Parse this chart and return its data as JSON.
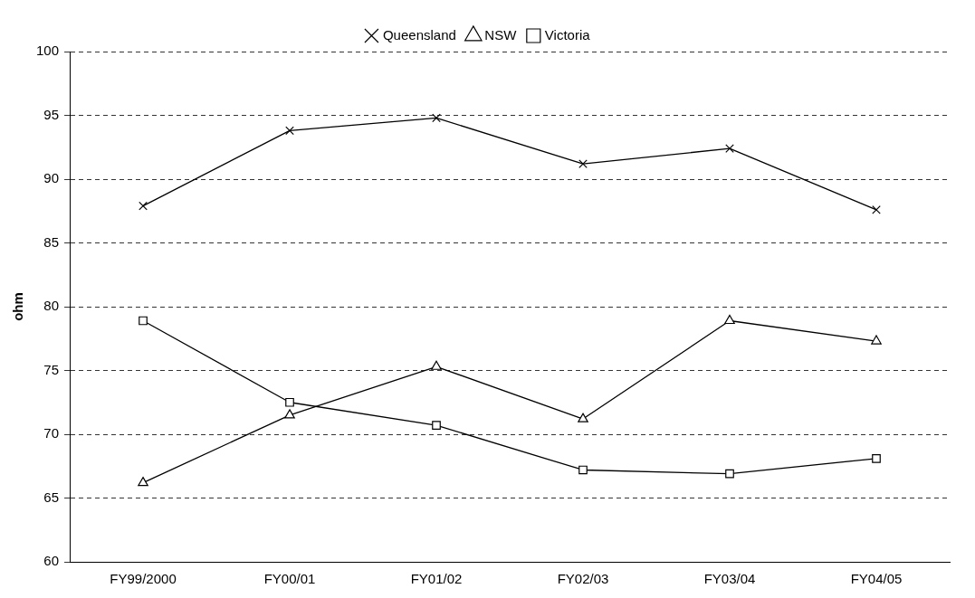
{
  "chart_data": {
    "type": "line",
    "ylabel": "ohm",
    "categories": [
      "FY99/2000",
      "FY00/01",
      "FY01/02",
      "FY02/03",
      "FY03/04",
      "FY04/05"
    ],
    "series": [
      {
        "name": "Queensland",
        "color": "#000000",
        "marker": "cross",
        "values": [
          87.9,
          93.8,
          94.8,
          91.2,
          92.4,
          87.6
        ]
      },
      {
        "name": "NSW",
        "color": "#000000",
        "marker": "triangle",
        "values": [
          66.2,
          71.5,
          75.3,
          71.2,
          78.9,
          77.3
        ]
      },
      {
        "name": "Victoria",
        "color": "#000000",
        "marker": "square",
        "values": [
          78.9,
          72.5,
          70.7,
          67.2,
          66.9,
          68.1
        ]
      }
    ],
    "ylim": [
      60,
      100
    ],
    "yticks": [
      60,
      65,
      70,
      75,
      80,
      85,
      90,
      95,
      100
    ],
    "grid": "y",
    "legend": "top",
    "line_style": "solid"
  }
}
